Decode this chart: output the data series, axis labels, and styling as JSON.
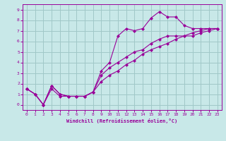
{
  "background_color": "#c8e8e8",
  "grid_color": "#a0c8c8",
  "line_color": "#990099",
  "marker_color": "#990099",
  "xlabel": "Windchill (Refroidissement éolien,°C)",
  "xlabel_color": "#990099",
  "tick_color": "#990099",
  "spine_color": "#990099",
  "xlim": [
    -0.5,
    23.5
  ],
  "ylim": [
    -0.5,
    9.5
  ],
  "xticks": [
    0,
    1,
    2,
    3,
    4,
    5,
    6,
    7,
    8,
    9,
    10,
    11,
    12,
    13,
    14,
    15,
    16,
    17,
    18,
    19,
    20,
    21,
    22,
    23
  ],
  "yticks": [
    0,
    1,
    2,
    3,
    4,
    5,
    6,
    7,
    8,
    9
  ],
  "lines": [
    {
      "x": [
        0,
        1,
        2,
        3,
        4,
        5,
        6,
        7,
        8,
        9,
        10,
        11,
        12,
        13,
        14,
        15,
        16,
        17,
        18,
        19,
        20,
        21,
        22,
        23
      ],
      "y": [
        1.5,
        1.0,
        0.0,
        1.8,
        1.0,
        0.8,
        0.8,
        0.8,
        1.2,
        3.2,
        4.0,
        6.5,
        7.2,
        7.0,
        7.2,
        8.2,
        8.8,
        8.3,
        8.3,
        7.5,
        7.2,
        7.2,
        7.2,
        7.2
      ]
    },
    {
      "x": [
        0,
        1,
        2,
        3,
        4,
        5,
        6,
        7,
        8,
        9,
        10,
        11,
        12,
        13,
        14,
        15,
        16,
        17,
        18,
        19,
        20,
        21,
        22,
        23
      ],
      "y": [
        1.5,
        1.0,
        0.0,
        1.8,
        1.0,
        0.8,
        0.8,
        0.8,
        1.2,
        2.8,
        3.5,
        4.0,
        4.5,
        5.0,
        5.2,
        5.8,
        6.2,
        6.5,
        6.5,
        6.5,
        6.5,
        6.8,
        7.0,
        7.2
      ]
    },
    {
      "x": [
        0,
        1,
        2,
        3,
        4,
        5,
        6,
        7,
        8,
        9,
        10,
        11,
        12,
        13,
        14,
        15,
        16,
        17,
        18,
        19,
        20,
        21,
        22,
        23
      ],
      "y": [
        1.5,
        1.0,
        0.0,
        1.5,
        0.8,
        0.8,
        0.8,
        0.8,
        1.2,
        2.2,
        2.8,
        3.2,
        3.8,
        4.2,
        4.8,
        5.2,
        5.5,
        5.8,
        6.2,
        6.5,
        6.8,
        7.0,
        7.2,
        7.2
      ]
    }
  ]
}
